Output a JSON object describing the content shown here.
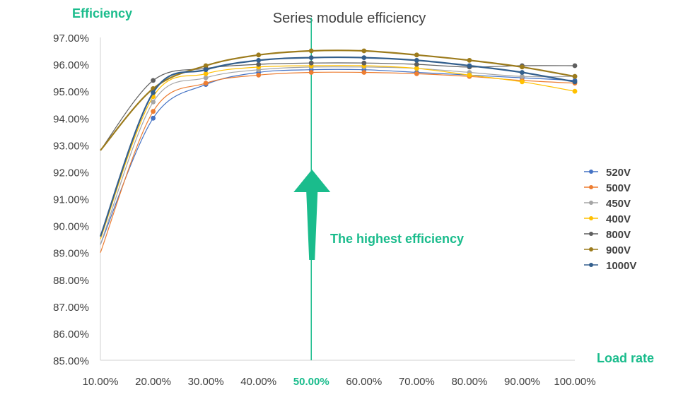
{
  "chart_data": {
    "type": "line",
    "title": "Series module efficiency",
    "ylabel": "Efficiency",
    "xlabel": "Load rate",
    "x": [
      0.1,
      0.2,
      0.3,
      0.4,
      0.5,
      0.6,
      0.7,
      0.8,
      0.9,
      1.0
    ],
    "xlim": [
      0.1,
      1.0
    ],
    "ylim": [
      0.85,
      0.97
    ],
    "x_ticks": [
      "10.00%",
      "20.00%",
      "30.00%",
      "40.00%",
      "50.00%",
      "60.00%",
      "70.00%",
      "80.00%",
      "90.00%",
      "100.00%"
    ],
    "y_ticks": [
      "97.00%",
      "96.00%",
      "95.00%",
      "94.00%",
      "93.00%",
      "92.00%",
      "91.00%",
      "90.00%",
      "89.00%",
      "88.00%",
      "87.00%",
      "86.00%",
      "85.00%"
    ],
    "y_tick_values": [
      0.97,
      0.96,
      0.95,
      0.94,
      0.93,
      0.92,
      0.91,
      0.9,
      0.89,
      0.88,
      0.87,
      0.86,
      0.85
    ],
    "grid": false,
    "legend_position": "right",
    "highlight_x": 0.5,
    "highlight_color": "#1abc8c",
    "annotation": "The highest efficiency",
    "series": [
      {
        "name": "520V",
        "color": "#4472c4",
        "values": [
          0.893,
          0.94,
          0.9525,
          0.957,
          0.958,
          0.958,
          0.957,
          0.956,
          0.955,
          0.954
        ]
      },
      {
        "name": "500V",
        "color": "#ed7d31",
        "values": [
          0.89,
          0.9425,
          0.953,
          0.956,
          0.957,
          0.957,
          0.9565,
          0.9555,
          0.954,
          0.953
        ]
      },
      {
        "name": "450V",
        "color": "#a5a5a5",
        "values": [
          0.893,
          0.946,
          0.955,
          0.958,
          0.959,
          0.959,
          0.9585,
          0.957,
          0.9555,
          0.9555
        ]
      },
      {
        "name": "400V",
        "color": "#ffc000",
        "values": [
          0.895,
          0.948,
          0.9565,
          0.959,
          0.9595,
          0.9595,
          0.9585,
          0.956,
          0.9535,
          0.95
        ]
      },
      {
        "name": "800V",
        "color": "#5f5f5f",
        "values": [
          0.928,
          0.954,
          0.9585,
          0.96,
          0.9605,
          0.9605,
          0.96,
          0.959,
          0.9595,
          0.9595
        ]
      },
      {
        "name": "900V",
        "color": "#9c7b1c",
        "values": [
          0.928,
          0.951,
          0.9595,
          0.9635,
          0.965,
          0.965,
          0.9635,
          0.9615,
          0.959,
          0.9555
        ]
      },
      {
        "name": "1000V",
        "color": "#335f8d",
        "values": [
          0.896,
          0.9495,
          0.958,
          0.9615,
          0.9625,
          0.9625,
          0.9615,
          0.9595,
          0.957,
          0.9535
        ]
      }
    ]
  }
}
